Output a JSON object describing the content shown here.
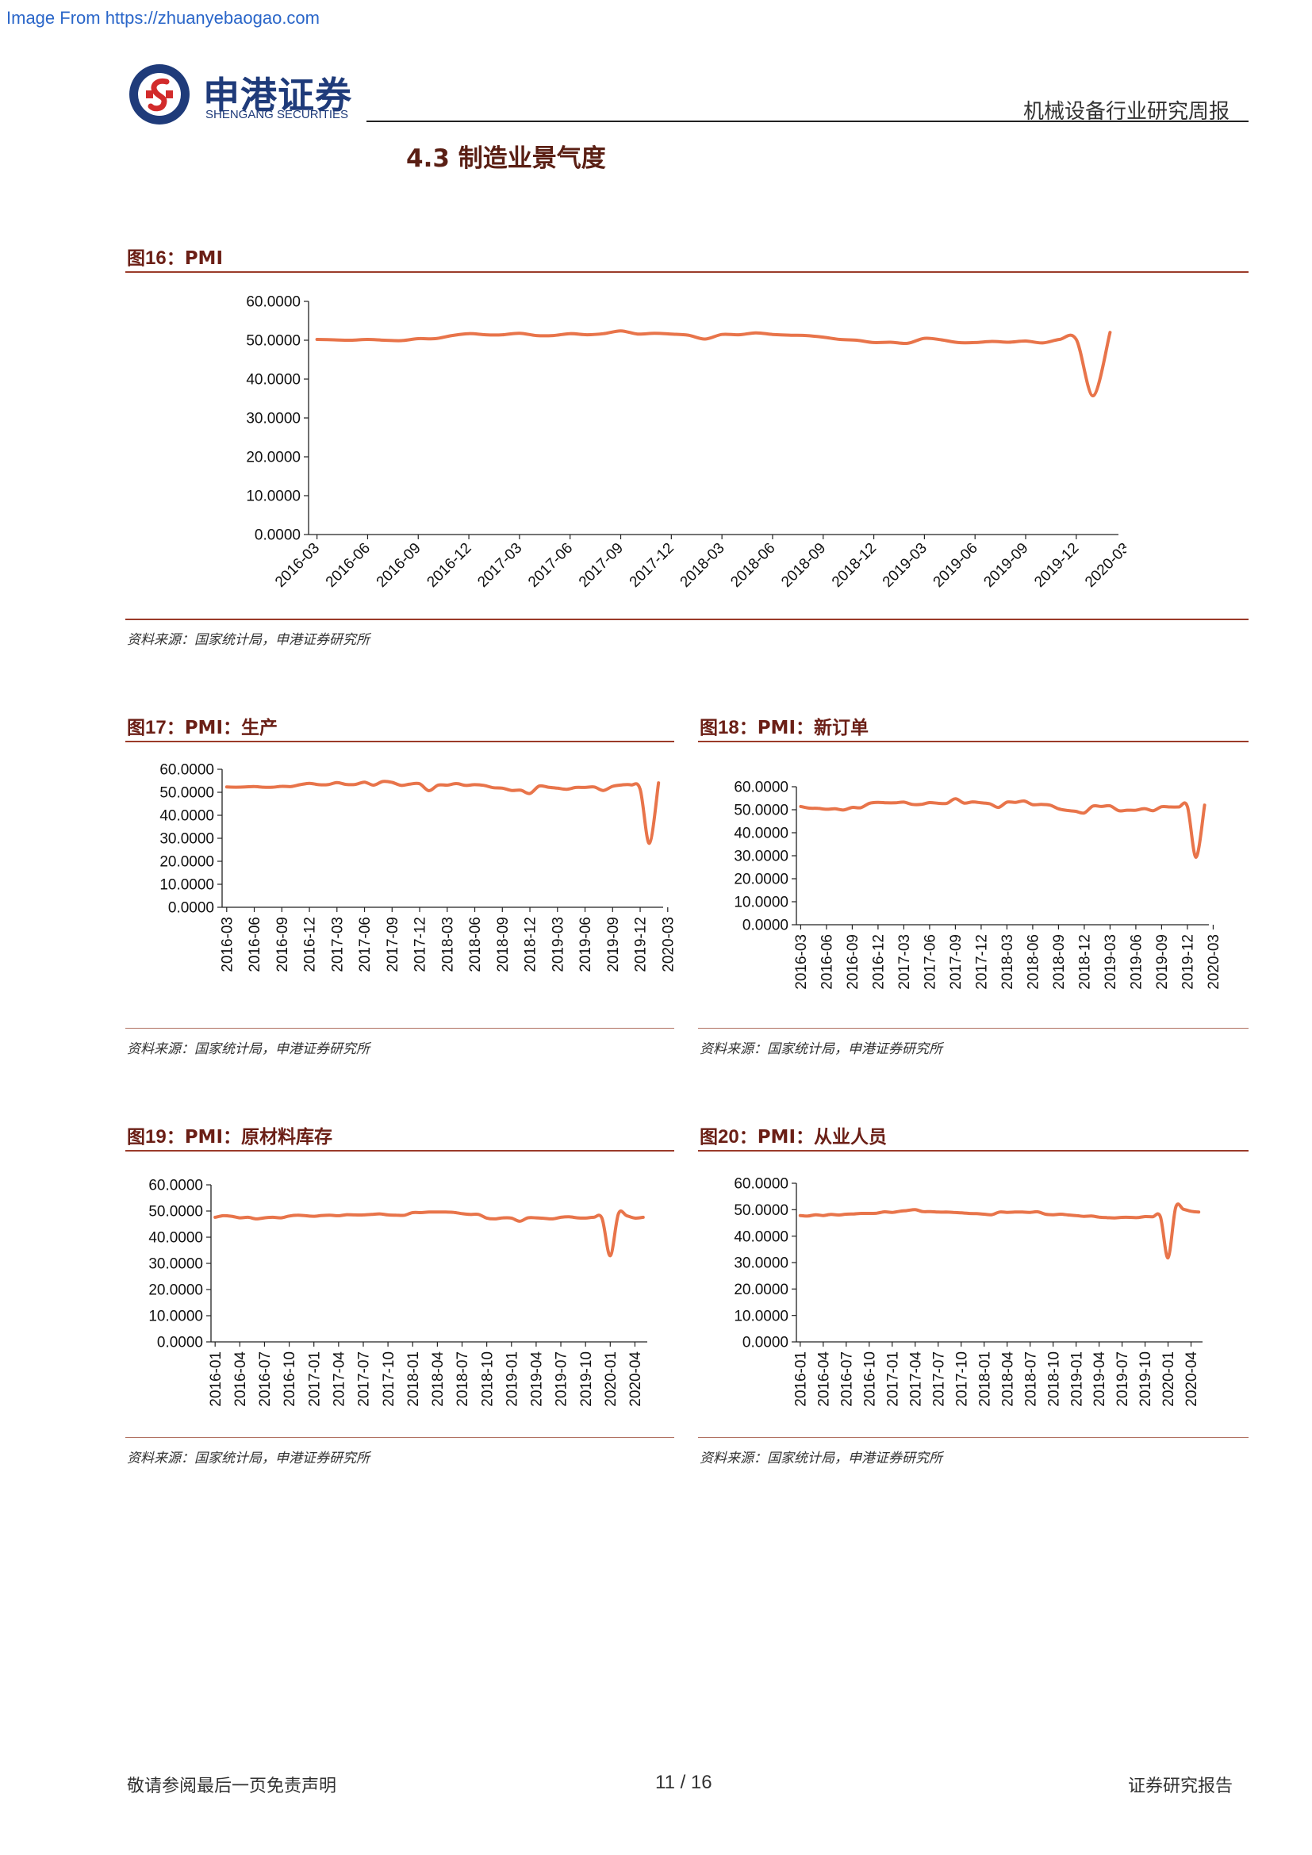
{
  "watermark": "Image From https://zhuanyebaogao.com",
  "header": {
    "brand_cn": "申港证券",
    "brand_en": "SHENGANG SECURITIES",
    "report_type": "机械设备行业研究周报"
  },
  "section_title": "4.3 制造业景气度",
  "source_text": "资料来源：国家统计局，申港证券研究所",
  "footer": {
    "left": "敬请参阅最后一页免责声明",
    "page": "11 / 16",
    "right": "证券研究报告"
  },
  "colors": {
    "line": "#e8744a",
    "rule": "#9b3b2a"
  },
  "chart_data": [
    {
      "id": "fig16",
      "type": "line",
      "fig_label": "图",
      "fig_num": "16",
      "title": "：PMI",
      "yticks": [
        "60.0000",
        "50.0000",
        "40.0000",
        "30.0000",
        "20.0000",
        "10.0000",
        "0.0000"
      ],
      "ylim": [
        0,
        60
      ],
      "xticks": [
        "2016-03",
        "2016-06",
        "2016-09",
        "2016-12",
        "2017-03",
        "2017-06",
        "2017-09",
        "2017-12",
        "2018-03",
        "2018-06",
        "2018-09",
        "2018-12",
        "2019-03",
        "2019-06",
        "2019-09",
        "2019-12",
        "2020-03"
      ],
      "x_start": "2016-03",
      "values": [
        50.2,
        50.1,
        50.0,
        50.2,
        50.0,
        49.9,
        50.4,
        50.4,
        51.2,
        51.7,
        51.4,
        51.4,
        51.8,
        51.2,
        51.2,
        51.7,
        51.4,
        51.7,
        52.4,
        51.6,
        51.8,
        51.6,
        51.3,
        50.3,
        51.5,
        51.4,
        51.9,
        51.5,
        51.3,
        51.2,
        50.8,
        50.2,
        50.0,
        49.4,
        49.5,
        49.2,
        50.5,
        50.1,
        49.4,
        49.4,
        49.7,
        49.5,
        49.8,
        49.3,
        50.2,
        50.2,
        35.7,
        52.0
      ]
    },
    {
      "id": "fig17",
      "type": "line",
      "fig_label": "图",
      "fig_num": "17",
      "title": "：PMI：生产",
      "yticks": [
        "60.0000",
        "50.0000",
        "40.0000",
        "30.0000",
        "20.0000",
        "10.0000",
        "0.0000"
      ],
      "ylim": [
        0,
        60
      ],
      "xticks": [
        "2016-03",
        "2016-06",
        "2016-09",
        "2016-12",
        "2017-03",
        "2017-06",
        "2017-09",
        "2017-12",
        "2018-03",
        "2018-06",
        "2018-09",
        "2018-12",
        "2019-03",
        "2019-06",
        "2019-09",
        "2019-12",
        "2020-03"
      ],
      "x_start": "2016-03",
      "values": [
        52.3,
        52.2,
        52.3,
        52.5,
        52.2,
        52.2,
        52.6,
        52.5,
        53.3,
        53.9,
        53.3,
        53.3,
        54.2,
        53.4,
        53.4,
        54.4,
        53.1,
        54.7,
        54.3,
        53.0,
        53.6,
        53.7,
        50.7,
        53.1,
        53.1,
        53.8,
        53.0,
        53.3,
        53.0,
        52.0,
        51.8,
        50.8,
        50.9,
        49.5,
        52.7,
        52.2,
        51.8,
        51.3,
        52.1,
        52.1,
        52.3,
        50.8,
        52.6,
        53.2,
        53.2,
        51.3,
        27.8,
        54.1
      ]
    },
    {
      "id": "fig18",
      "type": "line",
      "fig_label": "图",
      "fig_num": "18",
      "title": "：PMI：新订单",
      "yticks": [
        "60.0000",
        "50.0000",
        "40.0000",
        "30.0000",
        "20.0000",
        "10.0000",
        "0.0000"
      ],
      "ylim": [
        0,
        60
      ],
      "xticks": [
        "2016-03",
        "2016-06",
        "2016-09",
        "2016-12",
        "2017-03",
        "2017-06",
        "2017-09",
        "2017-12",
        "2018-03",
        "2018-06",
        "2018-09",
        "2018-12",
        "2019-03",
        "2019-06",
        "2019-09",
        "2019-12",
        "2020-03"
      ],
      "x_start": "2016-03",
      "values": [
        51.4,
        50.7,
        50.6,
        50.2,
        50.4,
        49.9,
        51.0,
        50.9,
        52.8,
        53.2,
        53.0,
        53.0,
        53.3,
        52.3,
        52.3,
        53.1,
        52.8,
        52.8,
        54.8,
        52.9,
        53.4,
        53.0,
        52.6,
        51.0,
        53.3,
        53.2,
        53.8,
        52.2,
        52.3,
        52.0,
        50.4,
        49.7,
        49.3,
        48.6,
        51.6,
        51.4,
        51.7,
        49.6,
        49.8,
        49.8,
        50.5,
        49.6,
        51.3,
        51.2,
        51.2,
        51.4,
        29.3,
        52.0
      ]
    },
    {
      "id": "fig19",
      "type": "line",
      "fig_label": "图",
      "fig_num": "19",
      "title": "：PMI：原材料库存",
      "yticks": [
        "60.0000",
        "50.0000",
        "40.0000",
        "30.0000",
        "20.0000",
        "10.0000",
        "0.0000"
      ],
      "ylim": [
        0,
        60
      ],
      "xticks": [
        "2016-01",
        "2016-04",
        "2016-07",
        "2016-10",
        "2017-01",
        "2017-04",
        "2017-07",
        "2017-10",
        "2018-01",
        "2018-04",
        "2018-07",
        "2018-10",
        "2019-01",
        "2019-04",
        "2019-07",
        "2019-10",
        "2020-01",
        "2020-04"
      ],
      "x_start": "2016-01",
      "values": [
        47.6,
        48.2,
        48.0,
        47.4,
        47.6,
        47.0,
        47.4,
        47.6,
        47.4,
        48.1,
        48.4,
        48.2,
        48.0,
        48.3,
        48.4,
        48.2,
        48.6,
        48.5,
        48.5,
        48.7,
        48.9,
        48.5,
        48.4,
        48.4,
        49.4,
        49.4,
        49.6,
        49.6,
        49.6,
        49.5,
        49.0,
        48.7,
        48.7,
        47.3,
        47.0,
        47.4,
        47.3,
        46.1,
        47.4,
        47.4,
        47.2,
        47.0,
        47.6,
        47.8,
        47.4,
        47.3,
        47.6,
        47.2,
        32.9,
        49.0,
        48.2,
        47.3,
        47.6
      ]
    },
    {
      "id": "fig20",
      "type": "line",
      "fig_label": "图",
      "fig_num": "20",
      "title": "：PMI：从业人员",
      "yticks": [
        "60.0000",
        "50.0000",
        "40.0000",
        "30.0000",
        "20.0000",
        "10.0000",
        "0.0000"
      ],
      "ylim": [
        0,
        60
      ],
      "xticks": [
        "2016-01",
        "2016-04",
        "2016-07",
        "2016-10",
        "2017-01",
        "2017-04",
        "2017-07",
        "2017-10",
        "2018-01",
        "2018-04",
        "2018-07",
        "2018-10",
        "2019-01",
        "2019-04",
        "2019-07",
        "2019-10",
        "2020-01",
        "2020-04"
      ],
      "x_start": "2016-01",
      "values": [
        47.8,
        47.6,
        48.1,
        47.8,
        48.2,
        48.0,
        48.3,
        48.4,
        48.6,
        48.6,
        48.7,
        49.2,
        49.0,
        49.4,
        49.7,
        50.0,
        49.3,
        49.3,
        49.1,
        49.1,
        49.0,
        48.8,
        48.6,
        48.5,
        48.3,
        48.1,
        49.1,
        49.0,
        49.1,
        49.1,
        49.0,
        49.2,
        48.3,
        48.1,
        48.3,
        48.0,
        47.8,
        47.5,
        47.6,
        47.2,
        47.0,
        46.9,
        47.1,
        47.1,
        47.0,
        47.4,
        47.3,
        47.3,
        31.8,
        50.9,
        50.2,
        49.4,
        49.1
      ]
    }
  ]
}
